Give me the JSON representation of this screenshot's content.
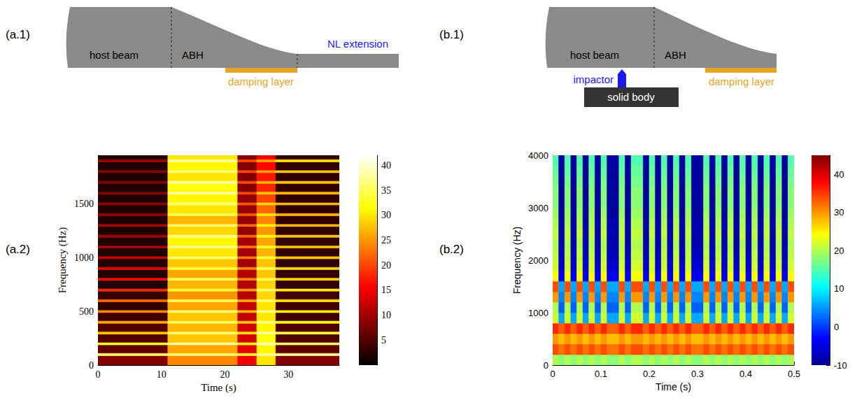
{
  "panel_labels": [
    "(a.1)",
    "(a.2)",
    "(b.1)",
    "(b.2)"
  ],
  "diagrams": [
    {
      "host_beam": "host beam",
      "abh": "ABH",
      "extension": "NL extension",
      "damping": "damping layer"
    },
    {
      "host_beam": "host beam",
      "abh": "ABH",
      "impactor": "impactor",
      "body": "solid body",
      "damping": "damping layer"
    }
  ],
  "chart_data": [
    {
      "type": "heatmap",
      "x_label": "Time (s)",
      "y_label": "Frequency (Hz)",
      "xlim": [
        0,
        38
      ],
      "xticks": [
        0,
        10,
        20,
        30
      ],
      "ylim": [
        0,
        1950
      ],
      "yticks": [
        0,
        500,
        1000,
        1500
      ],
      "x_edges": [
        0,
        11,
        22,
        25,
        28,
        38
      ],
      "y_edges": [
        0,
        88,
        112,
        188,
        212,
        288,
        312,
        388,
        412,
        488,
        512,
        588,
        612,
        688,
        712,
        788,
        812,
        888,
        912,
        988,
        1012,
        1088,
        1112,
        1188,
        1212,
        1288,
        1312,
        1388,
        1412,
        1488,
        1512,
        1588,
        1612,
        1688,
        1712,
        1788,
        1812,
        1888,
        1912,
        1950
      ],
      "cells": [
        [
          8,
          24,
          15,
          30,
          8
        ],
        [
          36,
          36,
          33,
          38,
          38
        ],
        [
          6,
          26,
          14,
          31,
          6
        ],
        [
          33,
          38,
          32,
          39,
          36
        ],
        [
          5,
          28,
          13,
          32,
          5
        ],
        [
          28,
          36,
          30,
          38,
          34
        ],
        [
          5,
          27,
          13,
          31,
          5
        ],
        [
          26,
          35,
          28,
          37,
          32
        ],
        [
          4,
          28,
          12,
          30,
          4
        ],
        [
          24,
          36,
          27,
          37,
          31
        ],
        [
          3,
          26,
          12,
          30,
          4
        ],
        [
          22,
          35,
          26,
          36,
          30
        ],
        [
          3,
          25,
          11,
          29,
          4
        ],
        [
          18,
          34,
          25,
          36,
          30
        ],
        [
          2,
          27,
          11,
          29,
          3
        ],
        [
          16,
          35,
          24,
          35,
          29
        ],
        [
          2,
          26,
          11,
          28,
          3
        ],
        [
          14,
          34,
          24,
          35,
          29
        ],
        [
          2,
          28,
          10,
          28,
          3
        ],
        [
          12,
          36,
          23,
          34,
          28
        ],
        [
          2,
          30,
          10,
          27,
          3
        ],
        [
          11,
          37,
          23,
          33,
          28
        ],
        [
          2,
          31,
          10,
          26,
          3
        ],
        [
          10,
          37,
          22,
          32,
          28
        ],
        [
          2,
          29,
          9,
          25,
          3
        ],
        [
          10,
          36,
          22,
          31,
          27
        ],
        [
          2,
          27,
          9,
          24,
          3
        ],
        [
          9,
          35,
          21,
          30,
          27
        ],
        [
          2,
          30,
          9,
          22,
          3
        ],
        [
          9,
          37,
          21,
          29,
          27
        ],
        [
          2,
          31,
          9,
          20,
          3
        ],
        [
          8,
          38,
          20,
          28,
          27
        ],
        [
          2,
          32,
          8,
          18,
          3
        ],
        [
          8,
          38,
          20,
          27,
          28
        ],
        [
          2,
          30,
          8,
          17,
          3
        ],
        [
          8,
          37,
          20,
          26,
          28
        ],
        [
          2,
          31,
          8,
          16,
          3
        ],
        [
          10,
          38,
          20,
          26,
          30
        ],
        [
          2,
          30,
          8,
          15,
          3
        ]
      ],
      "colorbar": {
        "range": [
          0,
          42
        ],
        "ticks": [
          5,
          10,
          15,
          20,
          25,
          30,
          35,
          40
        ]
      }
    },
    {
      "type": "heatmap",
      "x_label": "Time (s)",
      "y_label": "Frequency (Hz)",
      "xlim": [
        0,
        0.5
      ],
      "xticks": [
        0,
        0.1,
        0.2,
        0.3,
        0.4,
        0.5
      ],
      "ylim": [
        0,
        4000
      ],
      "yticks": [
        0,
        1000,
        2000,
        3000,
        4000
      ],
      "x_edges": [
        0,
        0.0125,
        0.025,
        0.0375,
        0.05,
        0.0625,
        0.075,
        0.0875,
        0.1,
        0.1125,
        0.125,
        0.1375,
        0.15,
        0.1625,
        0.175,
        0.1875,
        0.2,
        0.2125,
        0.225,
        0.2375,
        0.25,
        0.2625,
        0.275,
        0.2875,
        0.3,
        0.3125,
        0.325,
        0.3375,
        0.35,
        0.3625,
        0.375,
        0.3875,
        0.4,
        0.4125,
        0.425,
        0.4375,
        0.45,
        0.4625,
        0.475,
        0.4875,
        0.5
      ],
      "y_edges": [
        0,
        200,
        400,
        600,
        800,
        1000,
        1200,
        1400,
        1600,
        1800,
        2000,
        2200,
        2400,
        2600,
        2800,
        3000,
        3200,
        3400,
        3600,
        3800,
        4000
      ],
      "cells": [
        [
          20,
          18,
          20,
          18,
          20,
          18,
          20,
          18,
          20,
          18,
          18,
          20,
          18,
          20,
          20,
          18,
          20,
          18,
          20,
          18,
          20,
          18,
          20,
          18,
          18,
          20,
          18,
          20,
          18,
          20,
          18,
          20,
          18,
          20,
          18,
          20,
          18,
          20,
          18,
          20
        ],
        [
          34,
          32,
          34,
          32,
          34,
          32,
          34,
          32,
          34,
          32,
          32,
          34,
          32,
          34,
          34,
          32,
          34,
          32,
          34,
          32,
          34,
          32,
          34,
          32,
          32,
          34,
          32,
          34,
          32,
          34,
          32,
          34,
          32,
          34,
          32,
          34,
          32,
          34,
          32,
          34
        ],
        [
          30,
          28,
          30,
          28,
          30,
          28,
          30,
          28,
          30,
          28,
          28,
          30,
          28,
          30,
          30,
          28,
          30,
          28,
          30,
          28,
          30,
          28,
          30,
          28,
          28,
          30,
          28,
          30,
          28,
          30,
          28,
          30,
          28,
          30,
          28,
          30,
          28,
          30,
          28,
          30
        ],
        [
          36,
          33,
          36,
          33,
          36,
          33,
          36,
          33,
          36,
          33,
          33,
          36,
          33,
          36,
          36,
          33,
          36,
          33,
          36,
          33,
          36,
          33,
          36,
          33,
          33,
          36,
          33,
          36,
          33,
          36,
          33,
          36,
          33,
          36,
          33,
          36,
          33,
          36,
          33,
          36
        ],
        [
          22,
          6,
          22,
          6,
          22,
          6,
          22,
          6,
          22,
          6,
          6,
          22,
          6,
          22,
          22,
          6,
          22,
          6,
          22,
          6,
          22,
          6,
          22,
          6,
          6,
          22,
          6,
          22,
          6,
          22,
          6,
          22,
          6,
          22,
          6,
          22,
          6,
          22,
          6,
          22
        ],
        [
          20,
          2,
          20,
          2,
          20,
          2,
          20,
          2,
          20,
          2,
          2,
          20,
          2,
          20,
          20,
          2,
          20,
          2,
          20,
          2,
          20,
          2,
          20,
          2,
          2,
          20,
          2,
          20,
          2,
          20,
          2,
          20,
          2,
          20,
          2,
          20,
          2,
          20,
          2,
          20
        ],
        [
          30,
          4,
          30,
          4,
          30,
          4,
          30,
          4,
          30,
          4,
          4,
          30,
          4,
          30,
          30,
          4,
          30,
          4,
          30,
          4,
          30,
          4,
          30,
          4,
          4,
          30,
          4,
          30,
          4,
          30,
          4,
          30,
          4,
          30,
          4,
          30,
          4,
          30,
          4,
          30
        ],
        [
          34,
          6,
          34,
          6,
          34,
          6,
          34,
          6,
          34,
          6,
          6,
          34,
          6,
          34,
          34,
          6,
          34,
          6,
          34,
          6,
          34,
          6,
          34,
          6,
          6,
          34,
          6,
          34,
          6,
          34,
          6,
          34,
          6,
          34,
          6,
          34,
          6,
          34,
          6,
          34
        ],
        [
          24,
          -4,
          24,
          -4,
          24,
          -4,
          24,
          -4,
          24,
          -4,
          -4,
          24,
          -4,
          24,
          24,
          -4,
          24,
          -4,
          24,
          -4,
          24,
          -4,
          24,
          -4,
          -4,
          24,
          -4,
          24,
          -4,
          24,
          -4,
          24,
          -4,
          24,
          -4,
          24,
          -4,
          24,
          -4,
          24
        ],
        [
          22,
          -6,
          22,
          -6,
          22,
          -6,
          22,
          -6,
          22,
          -6,
          -6,
          22,
          -6,
          22,
          22,
          -6,
          22,
          -6,
          22,
          -6,
          22,
          -6,
          22,
          -6,
          -6,
          22,
          -6,
          22,
          -6,
          22,
          -6,
          22,
          -6,
          22,
          -6,
          22,
          -6,
          22,
          -6,
          22
        ],
        [
          21,
          -7,
          21,
          -7,
          21,
          -7,
          21,
          -7,
          21,
          -7,
          -7,
          21,
          -7,
          21,
          21,
          -7,
          21,
          -7,
          21,
          -7,
          21,
          -7,
          21,
          -7,
          -7,
          21,
          -7,
          21,
          -7,
          21,
          -7,
          21,
          -7,
          21,
          -7,
          21,
          -7,
          21,
          -7,
          21
        ],
        [
          20,
          -8,
          20,
          -8,
          20,
          -8,
          20,
          -8,
          20,
          -8,
          -8,
          20,
          -8,
          20,
          20,
          -8,
          20,
          -8,
          20,
          -8,
          20,
          -8,
          20,
          -8,
          -8,
          20,
          -8,
          20,
          -8,
          20,
          -8,
          20,
          -8,
          20,
          -8,
          20,
          -8,
          20,
          -8,
          20
        ],
        [
          21,
          -8,
          21,
          -8,
          21,
          -8,
          21,
          -8,
          21,
          -8,
          -8,
          21,
          -8,
          21,
          21,
          -8,
          21,
          -8,
          21,
          -8,
          21,
          -8,
          21,
          -8,
          -8,
          21,
          -8,
          21,
          -8,
          21,
          -8,
          21,
          -8,
          21,
          -8,
          21,
          -8,
          21,
          -8,
          21
        ],
        [
          20,
          -8,
          20,
          -8,
          20,
          -8,
          20,
          -8,
          20,
          -8,
          -8,
          20,
          -8,
          20,
          20,
          -8,
          20,
          -8,
          20,
          -8,
          20,
          -8,
          20,
          -8,
          -8,
          20,
          -8,
          20,
          -8,
          20,
          -8,
          20,
          -8,
          20,
          -8,
          20,
          -8,
          20,
          -8,
          20
        ],
        [
          19,
          -9,
          19,
          -9,
          19,
          -9,
          19,
          -9,
          19,
          -9,
          -9,
          19,
          -9,
          19,
          19,
          -9,
          19,
          -9,
          19,
          -9,
          19,
          -9,
          19,
          -9,
          -9,
          19,
          -9,
          19,
          -9,
          19,
          -9,
          19,
          -9,
          19,
          -9,
          19,
          -9,
          19,
          -9,
          19
        ],
        [
          18,
          -9,
          18,
          -9,
          18,
          -9,
          18,
          -9,
          18,
          -9,
          -9,
          18,
          -9,
          18,
          18,
          -9,
          18,
          -9,
          18,
          -9,
          18,
          -9,
          18,
          -9,
          -9,
          18,
          -9,
          18,
          -9,
          18,
          -9,
          18,
          -9,
          18,
          -9,
          18,
          -9,
          18,
          -9,
          18
        ],
        [
          18,
          -9,
          18,
          -9,
          18,
          -9,
          18,
          -9,
          18,
          -9,
          -9,
          18,
          -9,
          18,
          18,
          -9,
          18,
          -9,
          18,
          -9,
          18,
          -9,
          18,
          -9,
          -9,
          18,
          -9,
          18,
          -9,
          18,
          -9,
          18,
          -9,
          18,
          -9,
          18,
          -9,
          18,
          -9,
          18
        ],
        [
          17,
          -9,
          17,
          -9,
          17,
          -9,
          17,
          -9,
          17,
          -9,
          -9,
          17,
          -9,
          17,
          17,
          -9,
          17,
          -9,
          17,
          -9,
          17,
          -9,
          17,
          -9,
          -9,
          17,
          -9,
          17,
          -9,
          17,
          -9,
          17,
          -9,
          17,
          -9,
          17,
          -9,
          17,
          -9,
          17
        ],
        [
          16,
          -9,
          16,
          -9,
          16,
          -9,
          16,
          -9,
          16,
          -9,
          -9,
          16,
          -9,
          16,
          16,
          -9,
          16,
          -9,
          16,
          -9,
          16,
          -9,
          16,
          -9,
          -9,
          16,
          -9,
          16,
          -9,
          16,
          -9,
          16,
          -9,
          16,
          -9,
          16,
          -9,
          16,
          -9,
          16
        ],
        [
          15,
          -9,
          15,
          -9,
          15,
          -9,
          15,
          -9,
          15,
          -9,
          -9,
          15,
          -9,
          15,
          15,
          -9,
          15,
          -9,
          15,
          -9,
          15,
          -9,
          15,
          -9,
          -9,
          15,
          -9,
          15,
          -9,
          15,
          -9,
          15,
          -9,
          15,
          -9,
          15,
          -9,
          15,
          -9,
          15
        ]
      ],
      "colorbar": {
        "range": [
          -10,
          45
        ],
        "ticks": [
          -10,
          0,
          10,
          20,
          30,
          40
        ]
      }
    }
  ]
}
